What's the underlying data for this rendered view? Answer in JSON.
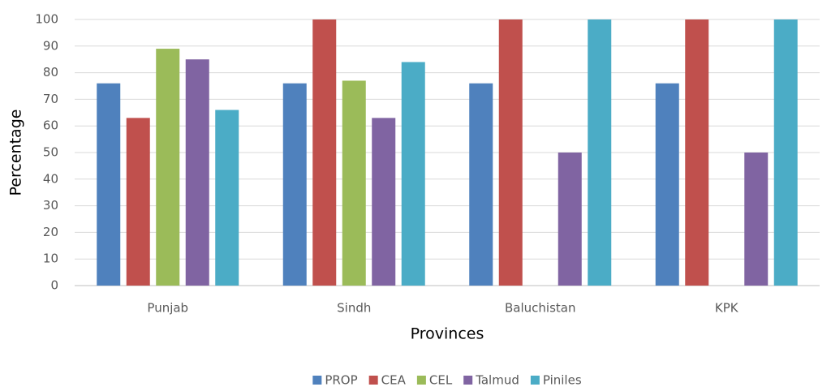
{
  "chart_data": {
    "type": "bar",
    "categories": [
      "Punjab",
      "Sindh",
      "Baluchistan",
      "KPK"
    ],
    "series": [
      {
        "name": "PROP",
        "color": "#4f81bd",
        "values": [
          76,
          76,
          76,
          76
        ]
      },
      {
        "name": "CEA",
        "color": "#c0504d",
        "values": [
          63,
          100,
          100,
          100
        ]
      },
      {
        "name": "CEL",
        "color": "#9bbb59",
        "values": [
          89,
          77,
          0,
          0
        ]
      },
      {
        "name": "Talmud",
        "color": "#8064a2",
        "values": [
          85,
          63,
          50,
          50
        ]
      },
      {
        "name": "Piniles",
        "color": "#4bacc6",
        "values": [
          66,
          84,
          100,
          100
        ]
      }
    ],
    "xlabel": "Provinces",
    "ylabel": "Percentage",
    "ylim": [
      0,
      100
    ],
    "yticks": [
      0,
      10,
      20,
      30,
      40,
      50,
      60,
      70,
      80,
      90,
      100
    ],
    "grid": true,
    "legend": "bottom"
  }
}
